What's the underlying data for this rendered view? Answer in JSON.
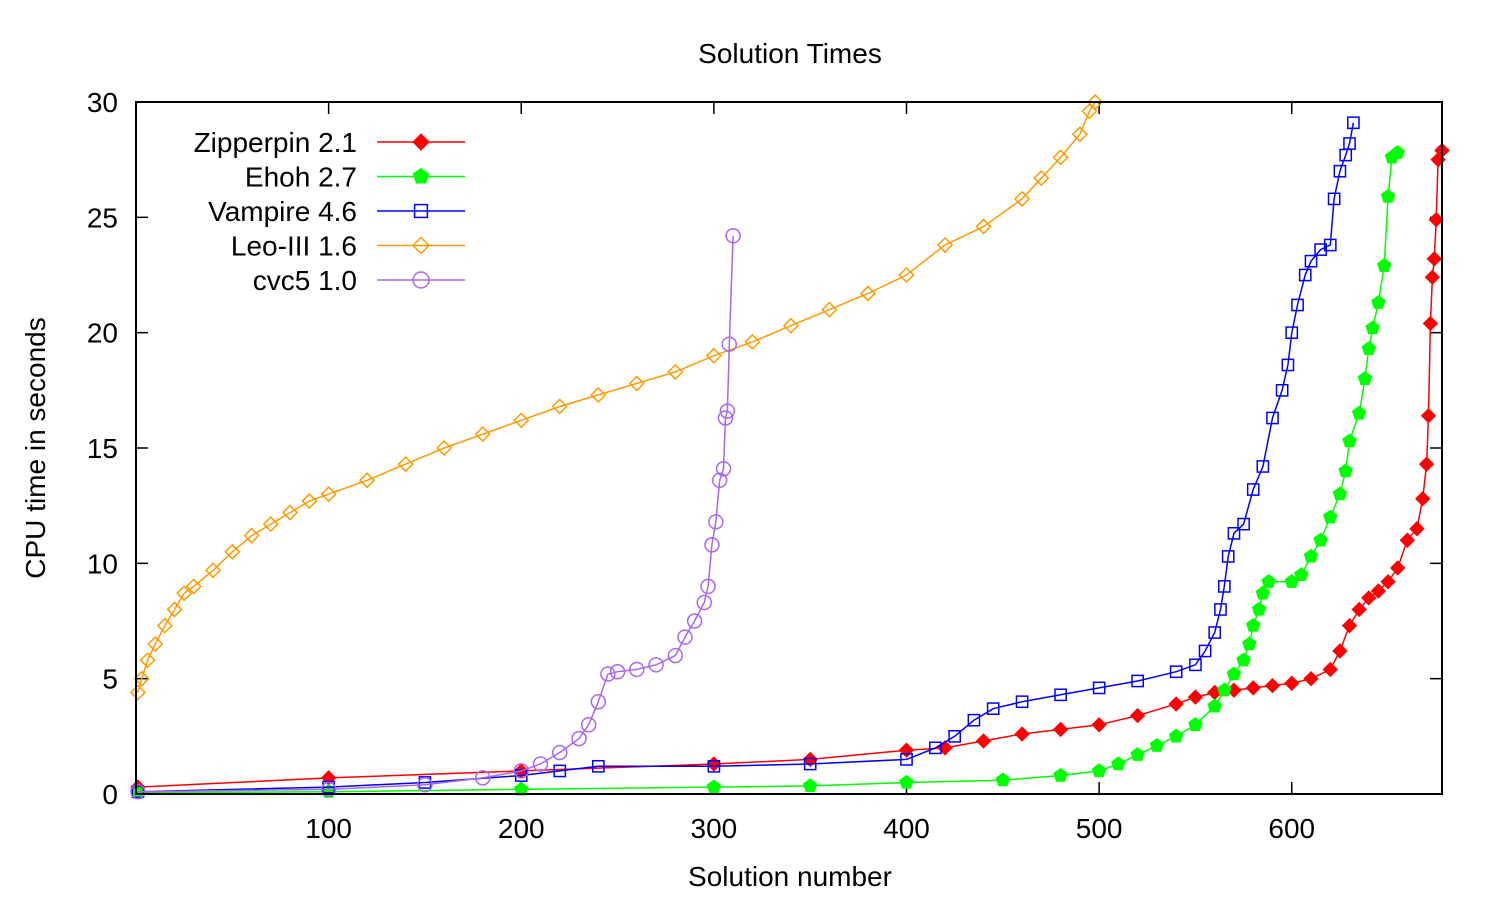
{
  "chart_data": {
    "type": "line",
    "title": "Solution Times",
    "xlabel": "Solution number",
    "ylabel": "CPU time in seconds",
    "xlim": [
      0,
      678
    ],
    "ylim": [
      0,
      30
    ],
    "x_ticks": [
      100,
      200,
      300,
      400,
      500,
      600
    ],
    "x_tick_labels": [
      "100",
      "200",
      "300",
      "400",
      "500",
      "600"
    ],
    "y_ticks": [
      0,
      5,
      10,
      15,
      20,
      25,
      30
    ],
    "y_tick_labels": [
      "0",
      "5",
      "10",
      "15",
      "20",
      "25",
      "30"
    ],
    "legend_position": "top-left",
    "grid": false,
    "series": [
      {
        "name": "Zipperpin 2.1",
        "color": "#ff0000",
        "marker": "filled-diamond",
        "points": [
          [
            1,
            0.3
          ],
          [
            100,
            0.7
          ],
          [
            200,
            1.0
          ],
          [
            300,
            1.3
          ],
          [
            350,
            1.5
          ],
          [
            400,
            1.9
          ],
          [
            420,
            2.0
          ],
          [
            440,
            2.3
          ],
          [
            460,
            2.6
          ],
          [
            480,
            2.8
          ],
          [
            500,
            3.0
          ],
          [
            520,
            3.4
          ],
          [
            540,
            3.9
          ],
          [
            550,
            4.2
          ],
          [
            560,
            4.4
          ],
          [
            570,
            4.5
          ],
          [
            580,
            4.6
          ],
          [
            590,
            4.7
          ],
          [
            600,
            4.8
          ],
          [
            610,
            5.0
          ],
          [
            620,
            5.4
          ],
          [
            625,
            6.2
          ],
          [
            630,
            7.3
          ],
          [
            635,
            8.0
          ],
          [
            640,
            8.5
          ],
          [
            645,
            8.8
          ],
          [
            650,
            9.2
          ],
          [
            655,
            9.8
          ],
          [
            660,
            11.0
          ],
          [
            665,
            11.5
          ],
          [
            668,
            12.8
          ],
          [
            670,
            14.3
          ],
          [
            671,
            16.4
          ],
          [
            672,
            20.4
          ],
          [
            673,
            22.4
          ],
          [
            674,
            23.2
          ],
          [
            675,
            24.9
          ],
          [
            676,
            27.5
          ],
          [
            678,
            27.9
          ]
        ]
      },
      {
        "name": "Ehoh 2.7",
        "color": "#00ff00",
        "marker": "filled-pentagon",
        "points": [
          [
            1,
            0.05
          ],
          [
            100,
            0.1
          ],
          [
            200,
            0.2
          ],
          [
            300,
            0.3
          ],
          [
            350,
            0.35
          ],
          [
            400,
            0.5
          ],
          [
            450,
            0.6
          ],
          [
            480,
            0.8
          ],
          [
            500,
            1.0
          ],
          [
            510,
            1.3
          ],
          [
            520,
            1.7
          ],
          [
            530,
            2.1
          ],
          [
            540,
            2.5
          ],
          [
            550,
            3.0
          ],
          [
            560,
            3.8
          ],
          [
            565,
            4.5
          ],
          [
            570,
            5.2
          ],
          [
            575,
            5.8
          ],
          [
            578,
            6.5
          ],
          [
            580,
            7.3
          ],
          [
            583,
            8.0
          ],
          [
            585,
            8.7
          ],
          [
            588,
            9.2
          ],
          [
            600,
            9.2
          ],
          [
            605,
            9.5
          ],
          [
            610,
            10.3
          ],
          [
            615,
            11.0
          ],
          [
            620,
            12.0
          ],
          [
            625,
            13.0
          ],
          [
            628,
            14.0
          ],
          [
            630,
            15.3
          ],
          [
            635,
            16.5
          ],
          [
            638,
            18.0
          ],
          [
            640,
            19.3
          ],
          [
            642,
            20.2
          ],
          [
            645,
            21.3
          ],
          [
            648,
            22.9
          ],
          [
            650,
            25.9
          ],
          [
            652,
            27.6
          ],
          [
            655,
            27.8
          ]
        ]
      },
      {
        "name": "Vampire 4.6",
        "color": "#0000ff",
        "marker": "open-square",
        "points": [
          [
            1,
            0.1
          ],
          [
            100,
            0.3
          ],
          [
            150,
            0.5
          ],
          [
            200,
            0.8
          ],
          [
            220,
            1.0
          ],
          [
            240,
            1.2
          ],
          [
            300,
            1.2
          ],
          [
            350,
            1.3
          ],
          [
            400,
            1.5
          ],
          [
            415,
            2.0
          ],
          [
            425,
            2.5
          ],
          [
            435,
            3.2
          ],
          [
            445,
            3.7
          ],
          [
            460,
            4.0
          ],
          [
            480,
            4.3
          ],
          [
            500,
            4.6
          ],
          [
            520,
            4.9
          ],
          [
            540,
            5.3
          ],
          [
            550,
            5.6
          ],
          [
            555,
            6.2
          ],
          [
            560,
            7.0
          ],
          [
            563,
            8.0
          ],
          [
            565,
            9.0
          ],
          [
            567,
            10.3
          ],
          [
            570,
            11.3
          ],
          [
            575,
            11.7
          ],
          [
            580,
            13.2
          ],
          [
            585,
            14.2
          ],
          [
            590,
            16.3
          ],
          [
            595,
            17.5
          ],
          [
            598,
            18.6
          ],
          [
            600,
            20.0
          ],
          [
            603,
            21.2
          ],
          [
            607,
            22.5
          ],
          [
            610,
            23.1
          ],
          [
            615,
            23.6
          ],
          [
            620,
            23.8
          ],
          [
            622,
            25.8
          ],
          [
            625,
            27.0
          ],
          [
            628,
            27.7
          ],
          [
            630,
            28.2
          ],
          [
            632,
            29.1
          ]
        ]
      },
      {
        "name": "Leo-III 1.6",
        "color": "#ff9900",
        "marker": "open-diamond",
        "points": [
          [
            1,
            4.4
          ],
          [
            3,
            5.0
          ],
          [
            6,
            5.8
          ],
          [
            10,
            6.5
          ],
          [
            15,
            7.3
          ],
          [
            20,
            8.0
          ],
          [
            25,
            8.7
          ],
          [
            30,
            9.0
          ],
          [
            40,
            9.7
          ],
          [
            50,
            10.5
          ],
          [
            60,
            11.2
          ],
          [
            70,
            11.7
          ],
          [
            80,
            12.2
          ],
          [
            90,
            12.7
          ],
          [
            100,
            13.0
          ],
          [
            120,
            13.6
          ],
          [
            140,
            14.3
          ],
          [
            160,
            15.0
          ],
          [
            180,
            15.6
          ],
          [
            200,
            16.2
          ],
          [
            220,
            16.8
          ],
          [
            240,
            17.3
          ],
          [
            260,
            17.8
          ],
          [
            280,
            18.3
          ],
          [
            300,
            19.0
          ],
          [
            320,
            19.6
          ],
          [
            340,
            20.3
          ],
          [
            360,
            21.0
          ],
          [
            380,
            21.7
          ],
          [
            400,
            22.5
          ],
          [
            420,
            23.8
          ],
          [
            440,
            24.6
          ],
          [
            460,
            25.8
          ],
          [
            470,
            26.7
          ],
          [
            480,
            27.6
          ],
          [
            490,
            28.6
          ],
          [
            495,
            29.6
          ],
          [
            498,
            30.0
          ]
        ]
      },
      {
        "name": "cvc5 1.0",
        "color": "#aa66ee",
        "marker": "open-circle",
        "points": [
          [
            1,
            0.1
          ],
          [
            100,
            0.2
          ],
          [
            150,
            0.4
          ],
          [
            180,
            0.7
          ],
          [
            200,
            1.0
          ],
          [
            210,
            1.3
          ],
          [
            220,
            1.8
          ],
          [
            230,
            2.4
          ],
          [
            235,
            3.0
          ],
          [
            240,
            4.0
          ],
          [
            245,
            5.2
          ],
          [
            250,
            5.3
          ],
          [
            260,
            5.4
          ],
          [
            270,
            5.6
          ],
          [
            280,
            6.0
          ],
          [
            285,
            6.8
          ],
          [
            290,
            7.5
          ],
          [
            295,
            8.3
          ],
          [
            297,
            9.0
          ],
          [
            299,
            10.8
          ],
          [
            301,
            11.8
          ],
          [
            303,
            13.6
          ],
          [
            305,
            14.1
          ],
          [
            306,
            16.3
          ],
          [
            307,
            16.6
          ],
          [
            308,
            19.5
          ],
          [
            310,
            24.2
          ]
        ]
      }
    ]
  }
}
